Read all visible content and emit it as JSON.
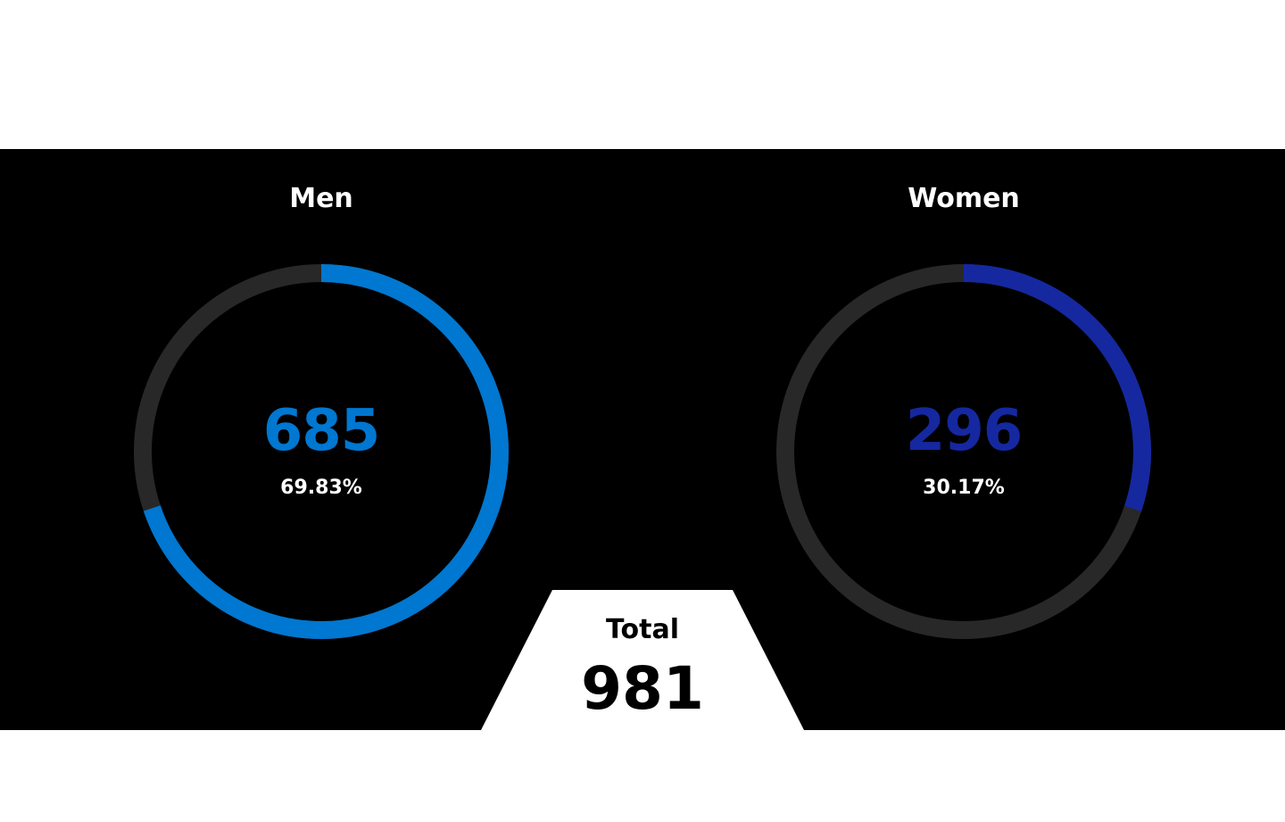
{
  "chart_data": {
    "type": "pie",
    "series": [
      {
        "name": "Men",
        "value": 685,
        "percent_label": "69.83%",
        "fraction": 0.6983,
        "color": "#0077d0"
      },
      {
        "name": "Women",
        "value": 296,
        "percent_label": "30.17%",
        "fraction": 0.3017,
        "color": "#1528a0"
      }
    ],
    "track_color": "#282828",
    "total": {
      "label": "Total",
      "value": 981
    }
  }
}
